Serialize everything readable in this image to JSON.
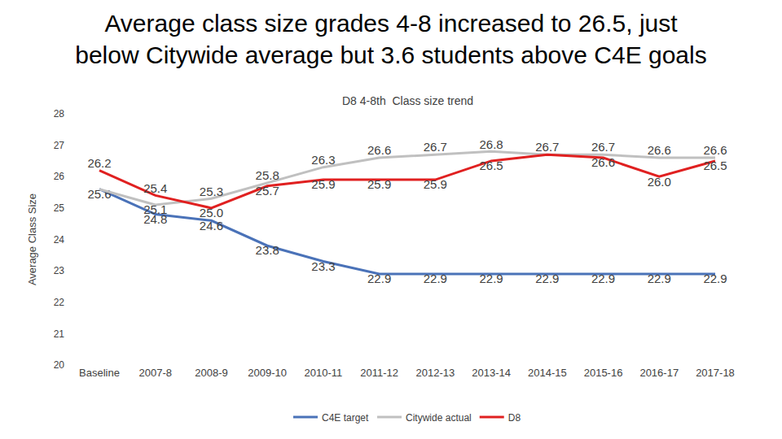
{
  "chart_data": {
    "type": "line",
    "title": "Average class size grades 4-8 increased to 26.5, just below Citywide average but 3.6 students above C4E goals",
    "subtitle": "D8 4-8th  Class size trend",
    "y_label": "Average Class Size",
    "categories": [
      "Baseline",
      "2007-8",
      "2008-9",
      "2009-10",
      "2010-11",
      "2011-12",
      "2012-13",
      "2013-14",
      "2014-15",
      "2015-16",
      "2016-17",
      "2017-18"
    ],
    "series": [
      {
        "name": "C4E target",
        "color": "#4a72b8",
        "values": [
          25.6,
          24.8,
          24.6,
          23.8,
          23.3,
          22.9,
          22.9,
          22.9,
          22.9,
          22.9,
          22.9,
          22.9
        ],
        "value_labels": [
          "25.6",
          "24.8",
          "24.6",
          "23.8",
          "23.3",
          "22.9",
          "22.9",
          "22.9",
          "22.9",
          "22.9",
          "22.9",
          "22.9"
        ]
      },
      {
        "name": "Citywide actual",
        "color": "#c0c0c0",
        "values": [
          25.6,
          25.1,
          25.3,
          25.8,
          26.3,
          26.6,
          26.7,
          26.8,
          26.7,
          26.7,
          26.6,
          26.6
        ],
        "value_labels": [
          null,
          "25.1",
          "25.3",
          "25.8",
          "26.3",
          "26.6",
          "26.7",
          "26.8",
          null,
          "26.7",
          "26.6",
          "26.6"
        ]
      },
      {
        "name": "D8",
        "color": "#e02020",
        "values": [
          26.2,
          25.4,
          25.0,
          25.7,
          25.9,
          25.9,
          25.9,
          26.5,
          26.7,
          26.6,
          26.0,
          26.5
        ],
        "value_labels": [
          "26.2",
          "25.4",
          "25.0",
          "25.7",
          "25.9",
          "25.9",
          "25.9",
          "26.5",
          "26.7",
          "26.6",
          "26.0",
          "26.5"
        ]
      }
    ],
    "ylim": [
      20,
      28
    ],
    "yticks": [
      20,
      21,
      22,
      23,
      24,
      25,
      26,
      27,
      28
    ],
    "grid": false,
    "legend": "bottom",
    "data_labels": true
  }
}
